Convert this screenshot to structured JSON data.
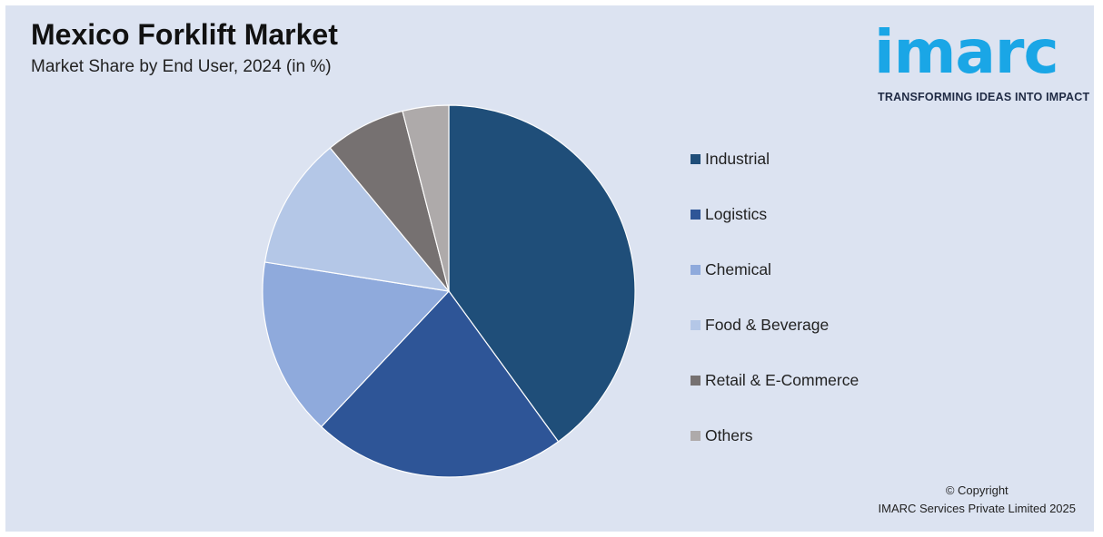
{
  "header": {
    "title": "Mexico Forklift Market",
    "subtitle": "Market Share by End User, 2024 (in %)"
  },
  "logo": {
    "wordmark": "imarc",
    "tagline": "TRANSFORMING IDEAS INTO IMPACT",
    "color": "#1aa6e6"
  },
  "chart_data": {
    "type": "pie",
    "title": "Mexico Forklift Market",
    "subtitle": "Market Share by End User, 2024 (in %)",
    "legend_position": "right",
    "categories": [
      "Industrial",
      "Logistics",
      "Chemical",
      "Food & Beverage",
      "Retail & E-Commerce",
      "Others"
    ],
    "values": [
      40,
      22,
      15.5,
      11.5,
      7,
      4
    ],
    "colors": [
      "#1f4e79",
      "#2e5597",
      "#8faadc",
      "#b4c7e7",
      "#767171",
      "#aeaaaa"
    ],
    "start_angle_deg": 0,
    "direction": "clockwise"
  },
  "footer": {
    "copyright_line1": "© Copyright",
    "copyright_line2": "IMARC Services Private Limited 2025"
  }
}
